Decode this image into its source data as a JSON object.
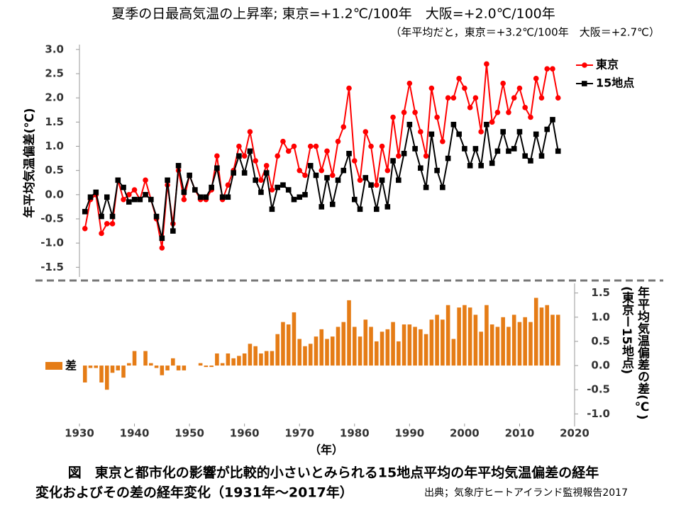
{
  "title": "夏季の日最高気温の上昇率; 東京=+1.2℃/100年　大阪=+2.0℃/100年",
  "subtitle": "（年平均だと，東京＝+3.2℃/100年　大阪＝+2.7℃）",
  "caption": [
    "図　東京と都市化の影響が比較的小さいとみられる15地点平均の年平均気温偏差の経年",
    "変化およびその差の経年変化（1931年～2017年）"
  ],
  "source": "出典；気象庁ヒートアイランド監視報告2017",
  "chart_data": [
    {
      "type": "line",
      "ylabel": "年平均気温偏差(℃)",
      "x": [
        1931,
        1932,
        1933,
        1934,
        1935,
        1936,
        1937,
        1938,
        1939,
        1940,
        1941,
        1942,
        1943,
        1944,
        1945,
        1946,
        1947,
        1948,
        1949,
        1950,
        1951,
        1952,
        1953,
        1954,
        1955,
        1956,
        1957,
        1958,
        1959,
        1960,
        1961,
        1962,
        1963,
        1964,
        1965,
        1966,
        1967,
        1968,
        1969,
        1970,
        1971,
        1972,
        1973,
        1974,
        1975,
        1976,
        1977,
        1978,
        1979,
        1980,
        1981,
        1982,
        1983,
        1984,
        1985,
        1986,
        1987,
        1988,
        1989,
        1990,
        1991,
        1992,
        1993,
        1994,
        1995,
        1996,
        1997,
        1998,
        1999,
        2000,
        2001,
        2002,
        2003,
        2004,
        2005,
        2006,
        2007,
        2008,
        2009,
        2010,
        2011,
        2012,
        2013,
        2014,
        2015,
        2016,
        2017
      ],
      "series": [
        {
          "name": "東京",
          "color": "#ff0000",
          "marker": "circle",
          "values": [
            -0.7,
            -0.1,
            0.0,
            -0.8,
            -0.6,
            -0.6,
            0.3,
            -0.1,
            0.0,
            0.1,
            -0.1,
            0.3,
            -0.1,
            -0.5,
            -1.1,
            0.2,
            -0.6,
            0.5,
            -0.1,
            0.4,
            0.1,
            -0.1,
            -0.1,
            0.1,
            0.8,
            -0.1,
            0.2,
            0.5,
            1.0,
            0.8,
            1.3,
            0.7,
            0.3,
            0.6,
            0.1,
            0.8,
            1.1,
            0.9,
            1.0,
            0.5,
            0.4,
            1.0,
            1.0,
            0.5,
            0.9,
            0.4,
            1.1,
            1.4,
            2.2,
            0.7,
            0.3,
            1.3,
            1.0,
            0.2,
            1.0,
            0.5,
            1.6,
            0.8,
            1.7,
            2.3,
            1.7,
            1.3,
            0.8,
            2.2,
            1.6,
            1.1,
            2.0,
            2.0,
            2.4,
            2.2,
            1.8,
            2.0,
            1.3,
            2.7,
            1.5,
            1.7,
            2.3,
            1.7,
            2.0,
            2.2,
            1.8,
            1.6,
            2.4,
            2.0,
            2.6,
            2.6,
            2.0
          ]
        },
        {
          "name": "15地点",
          "color": "#000000",
          "marker": "square",
          "values": [
            -0.35,
            -0.05,
            0.05,
            -0.45,
            -0.05,
            -0.45,
            0.3,
            0.15,
            -0.15,
            -0.1,
            -0.1,
            0.0,
            -0.1,
            -0.45,
            -0.9,
            0.3,
            -0.75,
            0.6,
            0.05,
            0.4,
            0.1,
            -0.05,
            -0.05,
            0.15,
            0.55,
            -0.05,
            -0.05,
            0.45,
            0.8,
            0.45,
            0.9,
            0.3,
            0.05,
            0.45,
            -0.3,
            0.15,
            0.2,
            0.1,
            -0.1,
            -0.05,
            0.0,
            0.6,
            0.4,
            -0.25,
            0.35,
            -0.2,
            0.3,
            0.5,
            0.85,
            -0.1,
            -0.3,
            0.35,
            0.2,
            -0.3,
            0.3,
            -0.25,
            0.7,
            0.3,
            0.85,
            1.45,
            0.95,
            0.55,
            0.15,
            1.25,
            0.5,
            0.15,
            0.75,
            1.45,
            1.25,
            0.95,
            0.6,
            0.95,
            0.6,
            1.45,
            0.65,
            0.9,
            1.3,
            0.9,
            0.95,
            1.3,
            0.8,
            0.7,
            1.25,
            0.8,
            1.35,
            1.55,
            0.9
          ]
        }
      ],
      "xlim": [
        1930,
        2020
      ],
      "ylim": [
        -1.7,
        3.1
      ],
      "yticks": [
        {
          "value": 3,
          "label": "3.0"
        },
        2.5,
        {
          "value": 2,
          "label": "2.0"
        },
        1.5,
        {
          "value": 1,
          "label": "1.0"
        },
        0.5,
        {
          "value": 0,
          "label": "0.0"
        },
        -0.5,
        {
          "value": -1,
          "label": "-1.0"
        },
        -1.5
      ],
      "legend": "right"
    },
    {
      "type": "bar",
      "ylabel": [
        "年平均気温偏差の差(℃)",
        "(東京ー15地点)"
      ],
      "xlabel": "（年）",
      "x": [
        1931,
        1932,
        1933,
        1934,
        1935,
        1936,
        1937,
        1938,
        1939,
        1940,
        1941,
        1942,
        1943,
        1944,
        1945,
        1946,
        1947,
        1948,
        1949,
        1950,
        1951,
        1952,
        1953,
        1954,
        1955,
        1956,
        1957,
        1958,
        1959,
        1960,
        1961,
        1962,
        1963,
        1964,
        1965,
        1966,
        1967,
        1968,
        1969,
        1970,
        1971,
        1972,
        1973,
        1974,
        1975,
        1976,
        1977,
        1978,
        1979,
        1980,
        1981,
        1982,
        1983,
        1984,
        1985,
        1986,
        1987,
        1988,
        1989,
        1990,
        1991,
        1992,
        1993,
        1994,
        1995,
        1996,
        1997,
        1998,
        1999,
        2000,
        2001,
        2002,
        2003,
        2004,
        2005,
        2006,
        2007,
        2008,
        2009,
        2010,
        2011,
        2012,
        2013,
        2014,
        2015,
        2016,
        2017
      ],
      "series": [
        {
          "name": "差",
          "color": "#e57c16",
          "values": [
            -0.35,
            -0.05,
            -0.05,
            -0.35,
            -0.5,
            -0.15,
            -0.1,
            -0.25,
            0.05,
            0.3,
            0.0,
            0.3,
            0.05,
            -0.05,
            -0.2,
            -0.1,
            0.15,
            -0.1,
            -0.1,
            0.0,
            0.0,
            0.05,
            -0.03,
            -0.03,
            0.25,
            0.05,
            0.25,
            0.15,
            0.2,
            0.25,
            0.45,
            0.4,
            0.25,
            0.3,
            0.3,
            0.65,
            0.9,
            0.85,
            1.1,
            0.55,
            0.4,
            0.45,
            0.6,
            0.75,
            0.55,
            0.6,
            0.8,
            0.9,
            1.35,
            0.8,
            0.6,
            0.95,
            0.8,
            0.5,
            0.7,
            0.75,
            0.9,
            0.5,
            0.85,
            0.85,
            0.8,
            0.75,
            0.65,
            0.95,
            1.05,
            0.95,
            1.25,
            0.55,
            1.2,
            1.25,
            1.2,
            1.05,
            0.7,
            1.25,
            0.85,
            0.8,
            1.0,
            0.8,
            1.05,
            0.9,
            1.0,
            0.9,
            1.4,
            1.2,
            1.25,
            1.05,
            1.05
          ]
        }
      ],
      "xlim": [
        1930,
        2020
      ],
      "xticks": [
        1930,
        1940,
        1950,
        1960,
        1970,
        1980,
        1990,
        2000,
        2010,
        2020
      ],
      "ylim": [
        -1.2,
        1.7
      ],
      "yticks": [
        1.5,
        {
          "value": 1,
          "label": "1.0"
        },
        0.5,
        {
          "value": 0,
          "label": "0.0"
        },
        -0.5,
        {
          "value": -1,
          "label": "-1.0"
        }
      ],
      "yaxis": "right",
      "legend": "left"
    }
  ]
}
